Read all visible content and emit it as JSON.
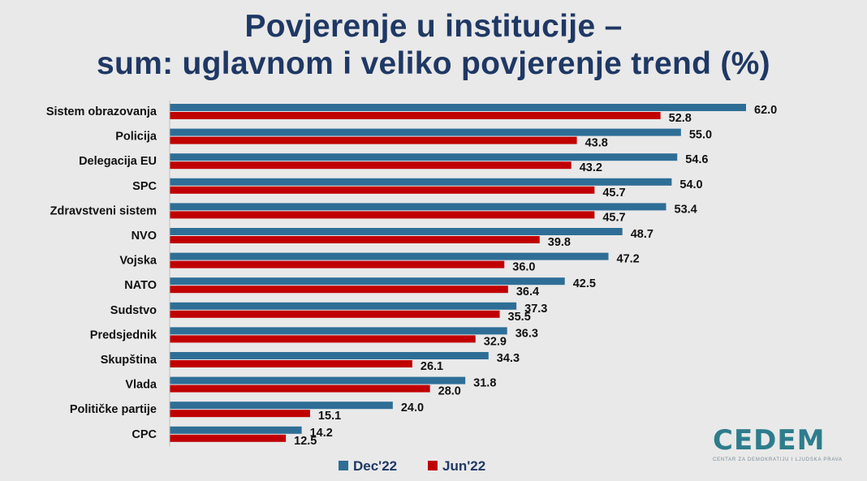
{
  "title_line1": "Povjerenje u institucije –",
  "title_line2": "sum: uglavnom i veliko povjerenje trend (%)",
  "chart_data": {
    "type": "bar",
    "orientation": "horizontal",
    "categories": [
      "Sistem obrazovanja",
      "Policija",
      "Delegacija EU",
      "SPC",
      "Zdravstveni sistem",
      "NVO",
      "Vojska",
      "NATO",
      "Sudstvo",
      "Predsjednik",
      "Skupština",
      "Vlada",
      "Političke partije",
      "CPC"
    ],
    "series": [
      {
        "name": "Dec'22",
        "color": "#2e6e96",
        "values": [
          62.0,
          55.0,
          54.6,
          54.0,
          53.4,
          48.7,
          47.2,
          42.5,
          37.3,
          36.3,
          34.3,
          31.8,
          24.0,
          14.2
        ]
      },
      {
        "name": "Jun'22",
        "color": "#c00000",
        "values": [
          52.8,
          43.8,
          43.2,
          45.7,
          45.7,
          39.8,
          36.0,
          36.4,
          35.5,
          32.9,
          26.1,
          28.0,
          15.1,
          12.5
        ]
      }
    ],
    "value_labels": {
      "Dec'22": [
        "62.0",
        "55.0",
        "54.6",
        "54.0",
        "53.4",
        "48.7",
        "47.2",
        "42.5",
        "37.3",
        "36.3",
        "34.3",
        "31.8",
        "24.0",
        "14.2"
      ],
      "Jun'22": [
        "52.8",
        "43.8",
        "43.2",
        "45.7",
        "45.7",
        "39.8",
        "36.0",
        "36.4",
        "35.5",
        "32.9",
        "26.1",
        "28.0",
        "15.1",
        "12.5"
      ]
    },
    "xlim": [
      0,
      62
    ],
    "legend_position": "bottom",
    "grid": false
  },
  "logo": {
    "text": "CEDEM",
    "subtitle": "CENTAR ZA DEMOKRATIJU I LJUDSKA PRAVA"
  }
}
